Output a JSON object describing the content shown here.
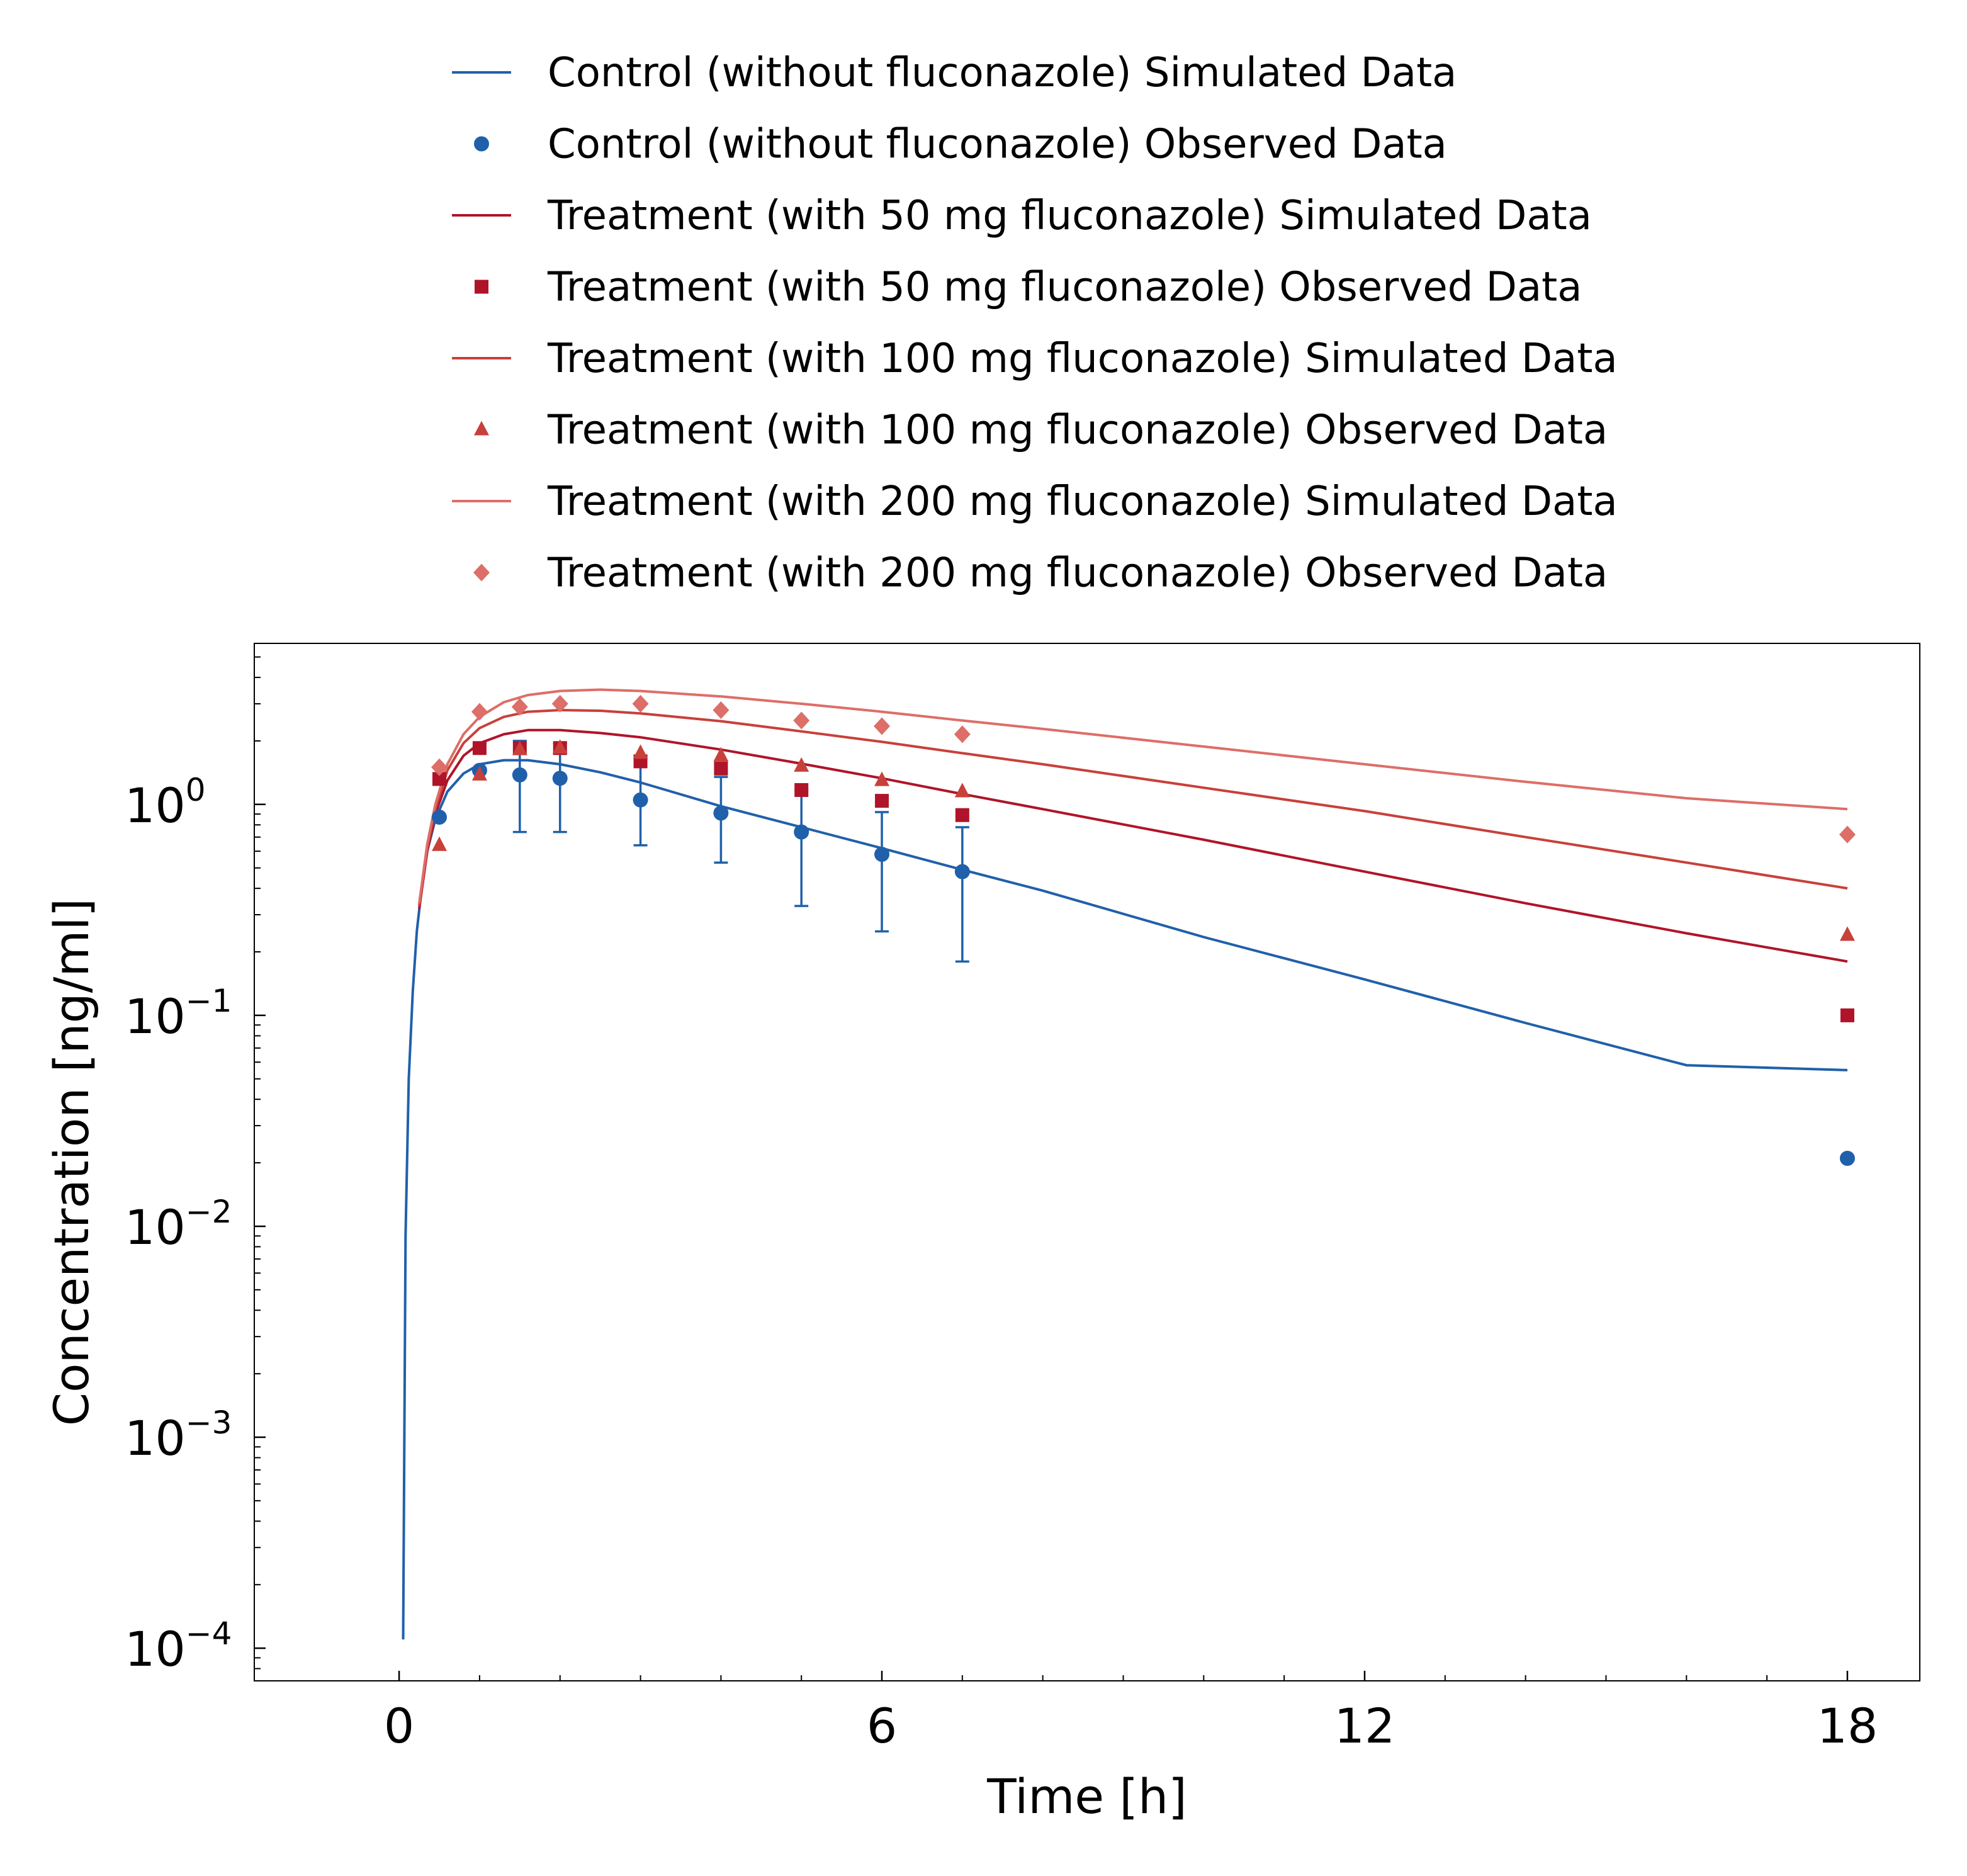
{
  "chart_data": {
    "type": "line",
    "title": "",
    "xlabel": "Time [h]",
    "ylabel": "Concentration [ng/ml]",
    "xlim": [
      -1.8,
      18.9
    ],
    "ylim": [
      7e-05,
      5.8
    ],
    "yscale": "log",
    "grid": false,
    "legend_position": "top, above plot",
    "x_ticks": [
      {
        "value": 0,
        "label": "0"
      },
      {
        "value": 6,
        "label": "6"
      },
      {
        "value": 12,
        "label": "12"
      },
      {
        "value": 18,
        "label": "18"
      }
    ],
    "y_ticks": [
      {
        "value": 1,
        "base": "10",
        "exp": "0"
      },
      {
        "value": 0.1,
        "base": "10",
        "exp": "−1"
      },
      {
        "value": 0.01,
        "base": "10",
        "exp": "−2"
      },
      {
        "value": 0.001,
        "base": "10",
        "exp": "−3"
      },
      {
        "value": 0.0001,
        "base": "10",
        "exp": "−4"
      }
    ],
    "series": [
      {
        "name": "Control (without fluconazole) Simulated Data",
        "kind": "line",
        "color": "#2060aa",
        "x": [
          0.05,
          0.08,
          0.12,
          0.17,
          0.22,
          0.28,
          0.35,
          0.45,
          0.6,
          0.8,
          1.0,
          1.3,
          1.6,
          2.0,
          2.5,
          3.0,
          4.0,
          5.0,
          6.0,
          7.0,
          8.0,
          10.0,
          12.0,
          14.0,
          16.0,
          18.0
        ],
        "y": [
          0.00011,
          0.009,
          0.05,
          0.13,
          0.25,
          0.4,
          0.6,
          0.85,
          1.15,
          1.4,
          1.55,
          1.62,
          1.62,
          1.55,
          1.42,
          1.27,
          0.98,
          0.78,
          0.62,
          0.49,
          0.39,
          0.235,
          0.148,
          0.092,
          0.058,
          0.055
        ]
      },
      {
        "name": "Control (without fluconazole) Observed Data",
        "kind": "marker",
        "marker": "circle",
        "color": "#2060aa",
        "x": [
          0.5,
          1.0,
          1.5,
          2.0,
          3.0,
          4.0,
          5.0,
          6.0,
          7.0,
          18.0
        ],
        "y": [
          0.87,
          1.45,
          1.38,
          1.33,
          1.05,
          0.91,
          0.74,
          0.58,
          0.48,
          0.021
        ],
        "err_low": [
          null,
          null,
          0.74,
          0.74,
          0.64,
          0.53,
          0.33,
          0.25,
          0.18,
          null
        ],
        "err_high": [
          null,
          null,
          2.0,
          1.95,
          1.7,
          1.35,
          1.17,
          0.92,
          0.78,
          null
        ]
      },
      {
        "name": "Treatment (with 50 mg fluconazole) Simulated Data",
        "kind": "line",
        "color": "#b0142a",
        "x": [
          0.25,
          0.35,
          0.45,
          0.6,
          0.8,
          1.0,
          1.3,
          1.6,
          2.0,
          2.5,
          3.0,
          4.0,
          5.0,
          6.0,
          7.0,
          8.0,
          10.0,
          12.0,
          14.0,
          16.0,
          18.0
        ],
        "y": [
          0.32,
          0.6,
          0.9,
          1.3,
          1.7,
          1.95,
          2.15,
          2.25,
          2.25,
          2.18,
          2.08,
          1.82,
          1.56,
          1.33,
          1.12,
          0.95,
          0.68,
          0.48,
          0.34,
          0.245,
          0.18
        ]
      },
      {
        "name": "Treatment (with 50 mg fluconazole) Observed Data",
        "kind": "marker",
        "marker": "square",
        "color": "#b0142a",
        "x": [
          0.5,
          1.0,
          1.5,
          2.0,
          3.0,
          4.0,
          5.0,
          6.0,
          7.0,
          18.0
        ],
        "y": [
          1.32,
          1.85,
          1.85,
          1.85,
          1.6,
          1.48,
          1.17,
          1.04,
          0.89,
          0.1
        ]
      },
      {
        "name": "Treatment (with 100 mg fluconazole) Simulated Data",
        "kind": "line",
        "color": "#c8403a",
        "x": [
          0.25,
          0.35,
          0.45,
          0.6,
          0.8,
          1.0,
          1.3,
          1.6,
          2.0,
          2.5,
          3.0,
          4.0,
          5.0,
          6.0,
          7.0,
          8.0,
          10.0,
          12.0,
          14.0,
          16.0,
          18.0
        ],
        "y": [
          0.33,
          0.62,
          0.95,
          1.45,
          1.95,
          2.3,
          2.6,
          2.75,
          2.8,
          2.78,
          2.7,
          2.48,
          2.22,
          1.98,
          1.75,
          1.55,
          1.2,
          0.93,
          0.7,
          0.53,
          0.4
        ]
      },
      {
        "name": "Treatment (with 100 mg fluconazole) Observed Data",
        "kind": "marker",
        "marker": "triangle",
        "color": "#c8403a",
        "x": [
          0.5,
          1.0,
          1.5,
          2.0,
          3.0,
          4.0,
          5.0,
          6.0,
          7.0,
          18.0
        ],
        "y": [
          0.64,
          1.38,
          1.82,
          1.85,
          1.75,
          1.7,
          1.52,
          1.3,
          1.15,
          0.24
        ]
      },
      {
        "name": "Treatment (with 200 mg fluconazole) Simulated Data",
        "kind": "line",
        "color": "#dd6e68",
        "x": [
          0.25,
          0.35,
          0.45,
          0.6,
          0.8,
          1.0,
          1.3,
          1.6,
          2.0,
          2.5,
          3.0,
          4.0,
          5.0,
          6.0,
          7.0,
          8.0,
          10.0,
          12.0,
          14.0,
          16.0,
          18.0
        ],
        "y": [
          0.34,
          0.65,
          1.0,
          1.55,
          2.15,
          2.6,
          3.05,
          3.3,
          3.45,
          3.5,
          3.45,
          3.25,
          3.0,
          2.75,
          2.5,
          2.28,
          1.88,
          1.55,
          1.28,
          1.07,
          0.95
        ]
      },
      {
        "name": "Treatment (with 200 mg fluconazole) Observed Data",
        "kind": "marker",
        "marker": "diamond",
        "color": "#dd6e68",
        "x": [
          0.5,
          1.0,
          1.5,
          2.0,
          3.0,
          4.0,
          5.0,
          6.0,
          7.0,
          18.0
        ],
        "y": [
          1.5,
          2.75,
          2.9,
          3.0,
          3.0,
          2.8,
          2.5,
          2.35,
          2.15,
          0.72
        ]
      }
    ]
  }
}
